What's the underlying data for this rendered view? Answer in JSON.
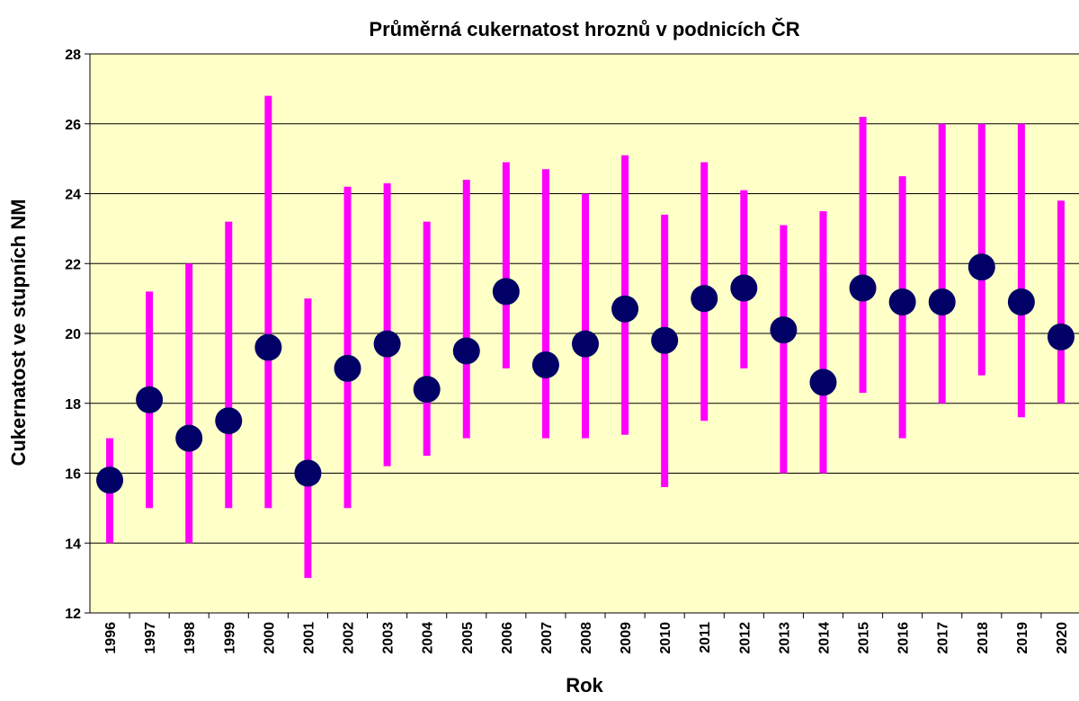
{
  "chart_data": {
    "type": "hilo",
    "title": "Průměrná cukernatost hroznů v podnicích ČR",
    "x_label": "Rok",
    "y_label": "Cukernatost ve stupních NM",
    "categories": [
      "1996",
      "1997",
      "1998",
      "1999",
      "2000",
      "2001",
      "2002",
      "2003",
      "2004",
      "2005",
      "2006",
      "2007",
      "2008",
      "2009",
      "2010",
      "2011",
      "2012",
      "2013",
      "2014",
      "2015",
      "2016",
      "2017",
      "2018",
      "2019",
      "2020"
    ],
    "values": [
      15.8,
      18.1,
      17,
      17.5,
      19.6,
      16,
      19,
      19.7,
      18.4,
      19.5,
      21.2,
      19.1,
      19.7,
      20.7,
      19.8,
      21,
      21.3,
      20.1,
      18.6,
      21.3,
      20.9,
      20.9,
      21.9,
      20.9,
      19.9
    ],
    "lows": [
      14,
      15,
      14,
      15,
      15,
      13,
      15,
      16.2,
      16.5,
      17,
      19,
      17,
      17,
      17.1,
      15.6,
      17.5,
      19,
      16,
      16,
      18.3,
      17,
      18,
      18.8,
      17.6,
      18
    ],
    "highs": [
      17,
      21.2,
      22,
      23.2,
      26.8,
      21,
      24.2,
      24.3,
      23.2,
      24.4,
      24.9,
      24.7,
      24,
      25.1,
      23.4,
      24.9,
      24.1,
      23.1,
      23.5,
      26.2,
      24.5,
      26,
      26,
      26,
      23.8
    ],
    "color": "#000066",
    "range_color": "#ff00ff",
    "background": "#ffffc8",
    "ylim": [
      12,
      28
    ],
    "yticks": [
      12,
      14,
      16,
      18,
      20,
      22,
      24,
      26,
      28
    ],
    "grid": true
  }
}
